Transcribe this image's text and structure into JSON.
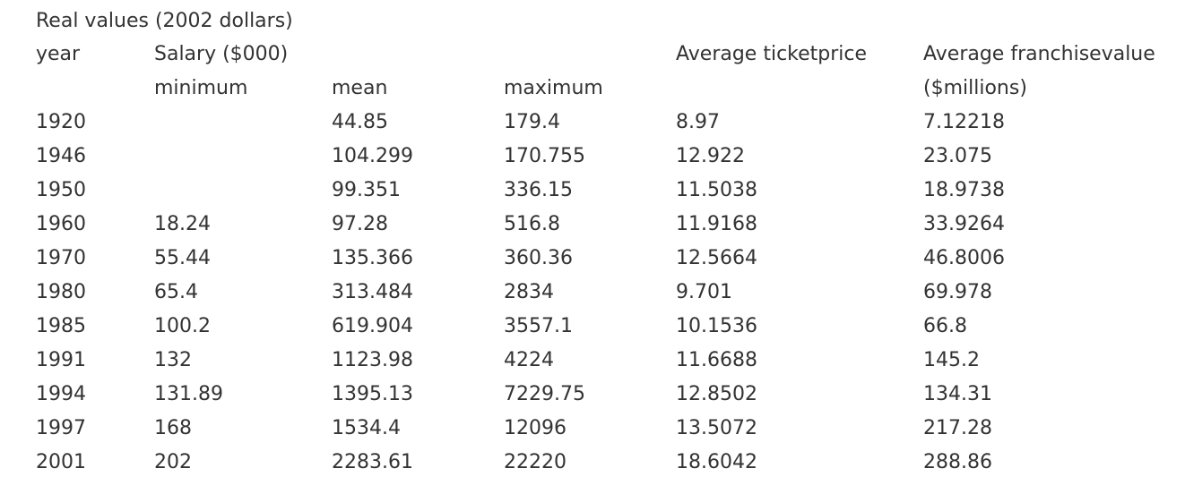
{
  "caption": "Real values (2002 dollars)",
  "header_row_1": [
    "year",
    "Salary ($000)",
    "",
    "",
    "Average ticketprice",
    "Average franchisevalue"
  ],
  "header_row_2": [
    "",
    "minimum",
    "mean",
    "maximum",
    "",
    "($millions)"
  ],
  "rows": [
    [
      "1920",
      "",
      "44.85",
      "179.4",
      "8.97",
      "7.12218"
    ],
    [
      "1946",
      "",
      "104.299",
      "170.755",
      "12.922",
      "23.075"
    ],
    [
      "1950",
      "",
      "99.351",
      "336.15",
      "11.5038",
      "18.9738"
    ],
    [
      "1960",
      "18.24",
      "97.28",
      "516.8",
      "11.9168",
      "33.9264"
    ],
    [
      "1970",
      "55.44",
      "135.366",
      "360.36",
      "12.5664",
      "46.8006"
    ],
    [
      "1980",
      "65.4",
      "313.484",
      "2834",
      "9.701",
      "69.978"
    ],
    [
      "1985",
      "100.2",
      "619.904",
      "3557.1",
      "10.1536",
      "66.8"
    ],
    [
      "1991",
      "132",
      "1123.98",
      "4224",
      "11.6688",
      "145.2"
    ],
    [
      "1994",
      "131.89",
      "1395.13",
      "7229.75",
      "12.8502",
      "134.31"
    ],
    [
      "1997",
      "168",
      "1534.4",
      "12096",
      "13.5072",
      "217.28"
    ],
    [
      "2001",
      "202",
      "2283.61",
      "22220",
      "18.6042",
      "288.86"
    ]
  ]
}
